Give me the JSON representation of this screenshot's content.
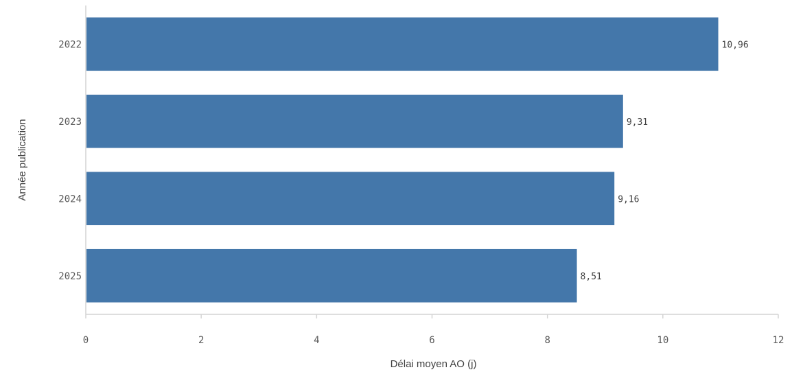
{
  "chart_data": {
    "type": "bar",
    "orientation": "horizontal",
    "categories": [
      "2022",
      "2023",
      "2024",
      "2025"
    ],
    "values": [
      10.96,
      9.31,
      9.16,
      8.51
    ],
    "value_labels": [
      "10,96",
      "9,31",
      "9,16",
      "8,51"
    ],
    "xlabel": "Délai moyen AO (j)",
    "ylabel": "Année publication",
    "xlim": [
      0,
      12
    ],
    "x_ticks": [
      0,
      2,
      4,
      6,
      8,
      10,
      12
    ],
    "grid": false,
    "bar_color": "#4477aa"
  }
}
